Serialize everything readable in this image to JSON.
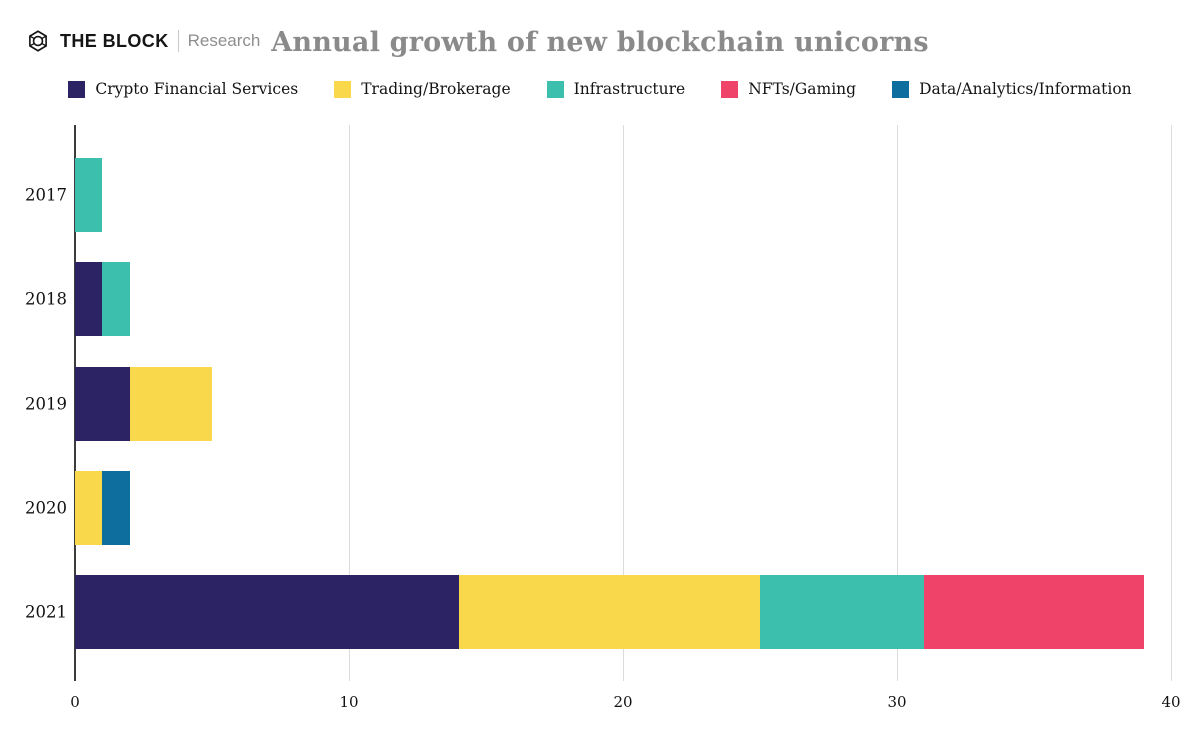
{
  "header": {
    "brand": "THE BLOCK",
    "brand_sub": "Research",
    "title": "Annual growth of new blockchain unicorns"
  },
  "icons": {
    "brand_logo": "the-block-cube-logo"
  },
  "colors": {
    "title_gray": "#8a8a8a",
    "axis": "#3c3c3c",
    "gridline": "#dcdcdc",
    "label_text": "#111111"
  },
  "chart_data": {
    "type": "bar",
    "orientation": "horizontal",
    "stacked": true,
    "title": "Annual growth of new blockchain unicorns",
    "xlabel": "",
    "ylabel": "",
    "xlim": [
      0,
      40
    ],
    "xticks": [
      0,
      10,
      20,
      30,
      40
    ],
    "grid": "vertical",
    "legend_position": "top",
    "categories": [
      "2017",
      "2018",
      "2019",
      "2020",
      "2021"
    ],
    "series": [
      {
        "name": "Crypto Financial Services",
        "color": "#2b2364",
        "values": [
          0,
          1,
          2,
          0,
          14
        ]
      },
      {
        "name": "Trading/Brokerage",
        "color": "#f9d84b",
        "values": [
          0,
          0,
          3,
          1,
          11
        ]
      },
      {
        "name": "Infrastructure",
        "color": "#3dbfad",
        "values": [
          1,
          1,
          0,
          0,
          6
        ]
      },
      {
        "name": "NFTs/Gaming",
        "color": "#ef4369",
        "values": [
          0,
          0,
          0,
          0,
          8
        ]
      },
      {
        "name": "Data/Analytics/Information",
        "color": "#0e6e9e",
        "values": [
          0,
          0,
          0,
          1,
          0
        ]
      }
    ],
    "totals_by_year": [
      1,
      2,
      5,
      2,
      39
    ]
  }
}
